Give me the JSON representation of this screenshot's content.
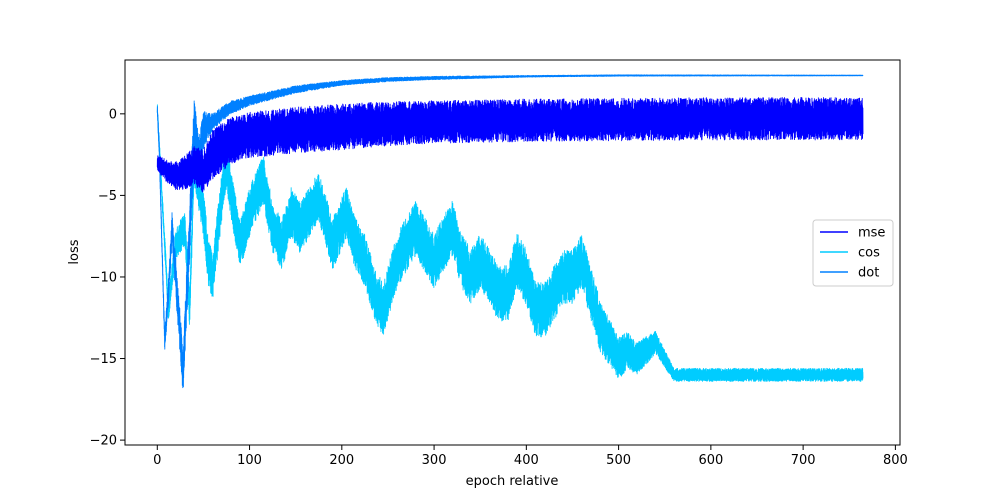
{
  "chart_data": {
    "type": "line",
    "xlabel": "epoch relative",
    "ylabel": "loss",
    "xlim": [
      -35,
      805
    ],
    "ylim": [
      -20.3,
      3.3
    ],
    "xticks": [
      0,
      100,
      200,
      300,
      400,
      500,
      600,
      700,
      800
    ],
    "yticks": [
      0,
      -5,
      -10,
      -15,
      -20
    ],
    "grid": false,
    "legend_position": "center-right",
    "series": [
      {
        "name": "mse",
        "color": "#0000ff",
        "center": [
          [
            0,
            -3.0
          ],
          [
            10,
            -3.5
          ],
          [
            20,
            -3.8
          ],
          [
            30,
            -3.6
          ],
          [
            40,
            -3.2
          ],
          [
            50,
            -3.5
          ],
          [
            60,
            -2.5
          ],
          [
            80,
            -1.6
          ],
          [
            100,
            -1.3
          ],
          [
            150,
            -1.0
          ],
          [
            200,
            -0.8
          ],
          [
            250,
            -0.6
          ],
          [
            300,
            -0.5
          ],
          [
            400,
            -0.4
          ],
          [
            500,
            -0.35
          ],
          [
            600,
            -0.3
          ],
          [
            700,
            -0.3
          ],
          [
            765,
            -0.3
          ]
        ],
        "spread": [
          [
            0,
            0.5
          ],
          [
            40,
            1.2
          ],
          [
            60,
            1.5
          ],
          [
            100,
            1.4
          ],
          [
            200,
            1.4
          ],
          [
            300,
            1.3
          ],
          [
            765,
            1.3
          ]
        ],
        "noise_amplitude": 1.0
      },
      {
        "name": "cos",
        "color": "#00ccff",
        "center": [
          [
            0,
            0.3
          ],
          [
            5,
            -5
          ],
          [
            12,
            -12
          ],
          [
            20,
            -8
          ],
          [
            30,
            -7
          ],
          [
            35,
            -12
          ],
          [
            40,
            -3
          ],
          [
            50,
            -6
          ],
          [
            55,
            -9
          ],
          [
            60,
            -10
          ],
          [
            70,
            -5
          ],
          [
            75,
            -3
          ],
          [
            80,
            -5
          ],
          [
            90,
            -8
          ],
          [
            100,
            -6
          ],
          [
            115,
            -4
          ],
          [
            125,
            -7
          ],
          [
            135,
            -8
          ],
          [
            145,
            -6
          ],
          [
            155,
            -7
          ],
          [
            165,
            -6
          ],
          [
            175,
            -5
          ],
          [
            190,
            -8
          ],
          [
            205,
            -6
          ],
          [
            215,
            -8
          ],
          [
            225,
            -9
          ],
          [
            235,
            -11
          ],
          [
            245,
            -12
          ],
          [
            260,
            -9
          ],
          [
            270,
            -8
          ],
          [
            280,
            -7
          ],
          [
            290,
            -8
          ],
          [
            300,
            -9
          ],
          [
            310,
            -8
          ],
          [
            320,
            -7
          ],
          [
            330,
            -9
          ],
          [
            340,
            -10
          ],
          [
            350,
            -9
          ],
          [
            360,
            -10
          ],
          [
            370,
            -11
          ],
          [
            380,
            -11
          ],
          [
            390,
            -9
          ],
          [
            400,
            -10
          ],
          [
            410,
            -12
          ],
          [
            420,
            -12
          ],
          [
            430,
            -11
          ],
          [
            440,
            -10
          ],
          [
            450,
            -10
          ],
          [
            460,
            -9
          ],
          [
            470,
            -11
          ],
          [
            480,
            -13
          ],
          [
            490,
            -14
          ],
          [
            500,
            -15
          ],
          [
            510,
            -14.5
          ],
          [
            520,
            -15
          ],
          [
            530,
            -14.5
          ],
          [
            540,
            -14
          ],
          [
            550,
            -15
          ],
          [
            560,
            -16
          ],
          [
            765,
            -16
          ]
        ],
        "spread": [
          [
            0,
            0.5
          ],
          [
            50,
            1.5
          ],
          [
            100,
            1.5
          ],
          [
            200,
            1.6
          ],
          [
            300,
            1.7
          ],
          [
            400,
            1.7
          ],
          [
            480,
            1.6
          ],
          [
            500,
            1.3
          ],
          [
            560,
            0.4
          ],
          [
            765,
            0.4
          ]
        ],
        "noise_amplitude": 1.0
      },
      {
        "name": "dot",
        "color": "#0080ff",
        "center": [
          [
            0,
            0.3
          ],
          [
            2,
            -2
          ],
          [
            5,
            -8
          ],
          [
            8,
            -14
          ],
          [
            12,
            -11
          ],
          [
            16,
            -7
          ],
          [
            20,
            -10
          ],
          [
            24,
            -13
          ],
          [
            28,
            -16
          ],
          [
            32,
            -11
          ],
          [
            36,
            -6
          ],
          [
            40,
            -1
          ],
          [
            45,
            -3
          ],
          [
            50,
            -1
          ],
          [
            60,
            -0.5
          ],
          [
            70,
            0
          ],
          [
            80,
            0.4
          ],
          [
            100,
            0.8
          ],
          [
            150,
            1.5
          ],
          [
            200,
            1.9
          ],
          [
            250,
            2.1
          ],
          [
            300,
            2.2
          ],
          [
            400,
            2.3
          ],
          [
            500,
            2.35
          ],
          [
            765,
            2.35
          ]
        ],
        "spread": [
          [
            0,
            0.4
          ],
          [
            40,
            2.0
          ],
          [
            45,
            1.5
          ],
          [
            60,
            0.5
          ],
          [
            100,
            0.3
          ],
          [
            200,
            0.15
          ],
          [
            400,
            0.05
          ],
          [
            765,
            0.02
          ]
        ],
        "noise_amplitude": 1.0
      }
    ]
  }
}
